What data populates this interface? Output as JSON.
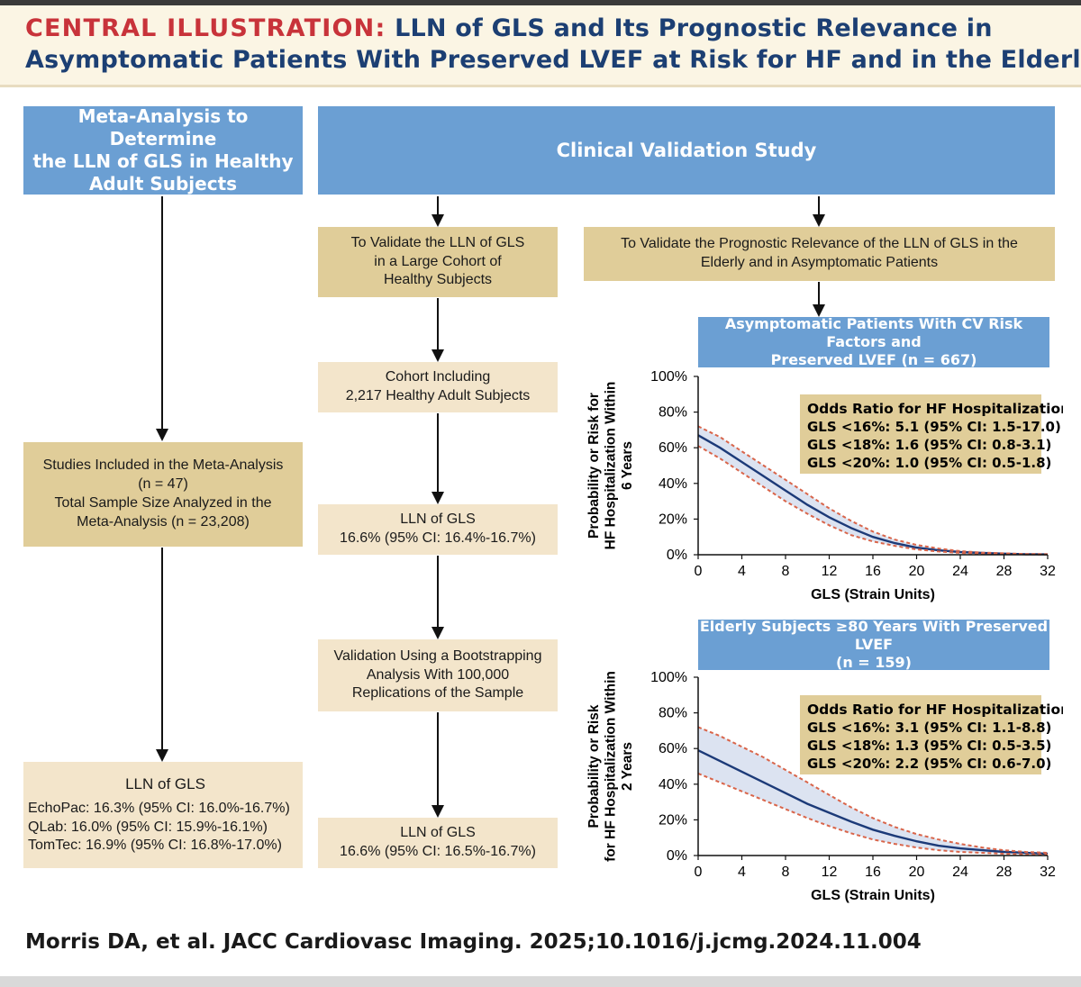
{
  "header": {
    "tag": "CENTRAL ILLUSTRATION:",
    "title_line1": "LLN of GLS and Its Prognostic Relevance in",
    "title_line2": "Asymptomatic Patients With Preserved LVEF at Risk for HF and in the Elderly"
  },
  "meta": {
    "title": [
      "Meta-Analysis to Determine",
      "the LLN of GLS in Healthy",
      "Adult Subjects"
    ],
    "studies": [
      "Studies Included in the Meta-Analysis",
      "(n = 47)",
      "Total Sample Size Analyzed in the",
      "Meta-Analysis (n = 23,208)"
    ],
    "result_title": "LLN of GLS",
    "results": [
      "EchoPac: 16.3% (95% CI: 16.0%-16.7%)",
      "QLab: 16.0% (95% CI: 15.9%-16.1%)",
      "TomTec: 16.9% (95% CI: 16.8%-17.0%)"
    ]
  },
  "validation": {
    "title": "Clinical Validation Study",
    "llnvalidate": [
      "To Validate the LLN of GLS",
      "in a Large Cohort of",
      "Healthy Subjects"
    ],
    "cohort": [
      "Cohort Including",
      "2,217 Healthy Adult Subjects"
    ],
    "lln1": [
      "LLN of GLS",
      "16.6% (95% CI: 16.4%-16.7%)"
    ],
    "bootstrap": [
      "Validation Using a Bootstrapping",
      "Analysis With 100,000",
      "Replications of the Sample"
    ],
    "lln2": [
      "LLN of GLS",
      "16.6% (95% CI: 16.5%-16.7%)"
    ],
    "prognostic": [
      "To Validate the Prognostic Relevance of the LLN of GLS in the",
      "Elderly and in Asymptomatic Patients"
    ]
  },
  "chart_data": [
    {
      "type": "line",
      "title": [
        "Asymptomatic Patients With CV Risk Factors and",
        "Preserved LVEF (n = 667)"
      ],
      "xlabel": "GLS (Strain Units)",
      "ylabel": [
        "Probability or Risk for",
        "HF Hospitalization Within",
        "6 Years"
      ],
      "xlim": [
        0,
        32
      ],
      "ylim": [
        0,
        100
      ],
      "x_ticks": [
        0,
        4,
        8,
        12,
        16,
        20,
        24,
        28,
        32
      ],
      "y_ticks": [
        "0%",
        "20%",
        "40%",
        "60%",
        "80%",
        "100%"
      ],
      "grid": false,
      "x": [
        0,
        2,
        4,
        6,
        8,
        10,
        12,
        14,
        16,
        18,
        20,
        22,
        24,
        26,
        28,
        30,
        32
      ],
      "series": [
        {
          "values": [
            67,
            60,
            52,
            44,
            36,
            28,
            21,
            15,
            10,
            6.5,
            4,
            2.5,
            1.5,
            1,
            0.6,
            0.3,
            0.2
          ],
          "color": "#1c3a78"
        },
        {
          "values": [
            72,
            66,
            58,
            50,
            42,
            34,
            26,
            19,
            13,
            8.5,
            5.5,
            3.5,
            2,
            1.2,
            0.8,
            0.4,
            0.3
          ],
          "color": "#d9654a"
        },
        {
          "values": [
            61,
            54,
            46,
            38,
            30,
            23,
            16.5,
            11,
            7.5,
            5,
            3,
            1.8,
            1,
            0.6,
            0.4,
            0.2,
            0.1
          ],
          "color": "#d9654a"
        }
      ],
      "odds": {
        "title": "Odds Ratio for HF Hospitalization",
        "rows": [
          "GLS <16%: 5.1 (95% CI: 1.5-17.0)",
          "GLS <18%: 1.6 (95% CI: 0.8-3.1)",
          "GLS <20%: 1.0 (95% CI: 0.5-1.8)"
        ]
      }
    },
    {
      "type": "line",
      "title": [
        "Elderly Subjects ≥80 Years With Preserved LVEF",
        "(n = 159)"
      ],
      "xlabel": "GLS (Strain Units)",
      "ylabel": [
        "Probability or Risk",
        "for HF Hospitalization Within",
        "2 Years"
      ],
      "xlim": [
        0,
        32
      ],
      "ylim": [
        0,
        100
      ],
      "x_ticks": [
        0,
        4,
        8,
        12,
        16,
        20,
        24,
        28,
        32
      ],
      "y_ticks": [
        "0%",
        "20%",
        "40%",
        "60%",
        "80%",
        "100%"
      ],
      "grid": false,
      "x": [
        0,
        2,
        4,
        6,
        8,
        10,
        12,
        14,
        16,
        18,
        20,
        22,
        24,
        26,
        28,
        30,
        32
      ],
      "series": [
        {
          "values": [
            59,
            53,
            47,
            41,
            35,
            29,
            24,
            19,
            14.5,
            11,
            8,
            5.5,
            4,
            3,
            2,
            1.5,
            1
          ],
          "color": "#1c3a78"
        },
        {
          "values": [
            72,
            67,
            61,
            55,
            48,
            41,
            34,
            27,
            21,
            16,
            12,
            9,
            6.5,
            4.5,
            3,
            2,
            1.5
          ],
          "color": "#d9654a"
        },
        {
          "values": [
            46,
            41,
            36,
            31,
            26,
            21,
            16.5,
            12.5,
            9,
            6.5,
            4.5,
            3,
            2,
            1.5,
            1,
            0.7,
            0.5
          ],
          "color": "#d9654a"
        }
      ],
      "odds": {
        "title": "Odds Ratio for HF Hospitalization",
        "rows": [
          "GLS <16%: 3.1 (95% CI: 1.1-8.8)",
          "GLS <18%: 1.3 (95% CI: 0.5-3.5)",
          "GLS <20%: 2.2 (95% CI: 0.6-7.0)"
        ]
      }
    }
  ],
  "footer": {
    "citation": "Morris DA, et al. JACC Cardiovasc Imaging. 2025;10.1016/j.jcmg.2024.11.004"
  },
  "colors": {
    "blue_box": "#6b9fd3",
    "tan_box": "#e0cd99",
    "cream_box": "#f3e5cb",
    "title_red": "#c8333a",
    "title_navy": "#1c3f73",
    "curve": "#1c3a78",
    "ci_band": "#d9654a",
    "ci_fill": "#dce3f1"
  }
}
